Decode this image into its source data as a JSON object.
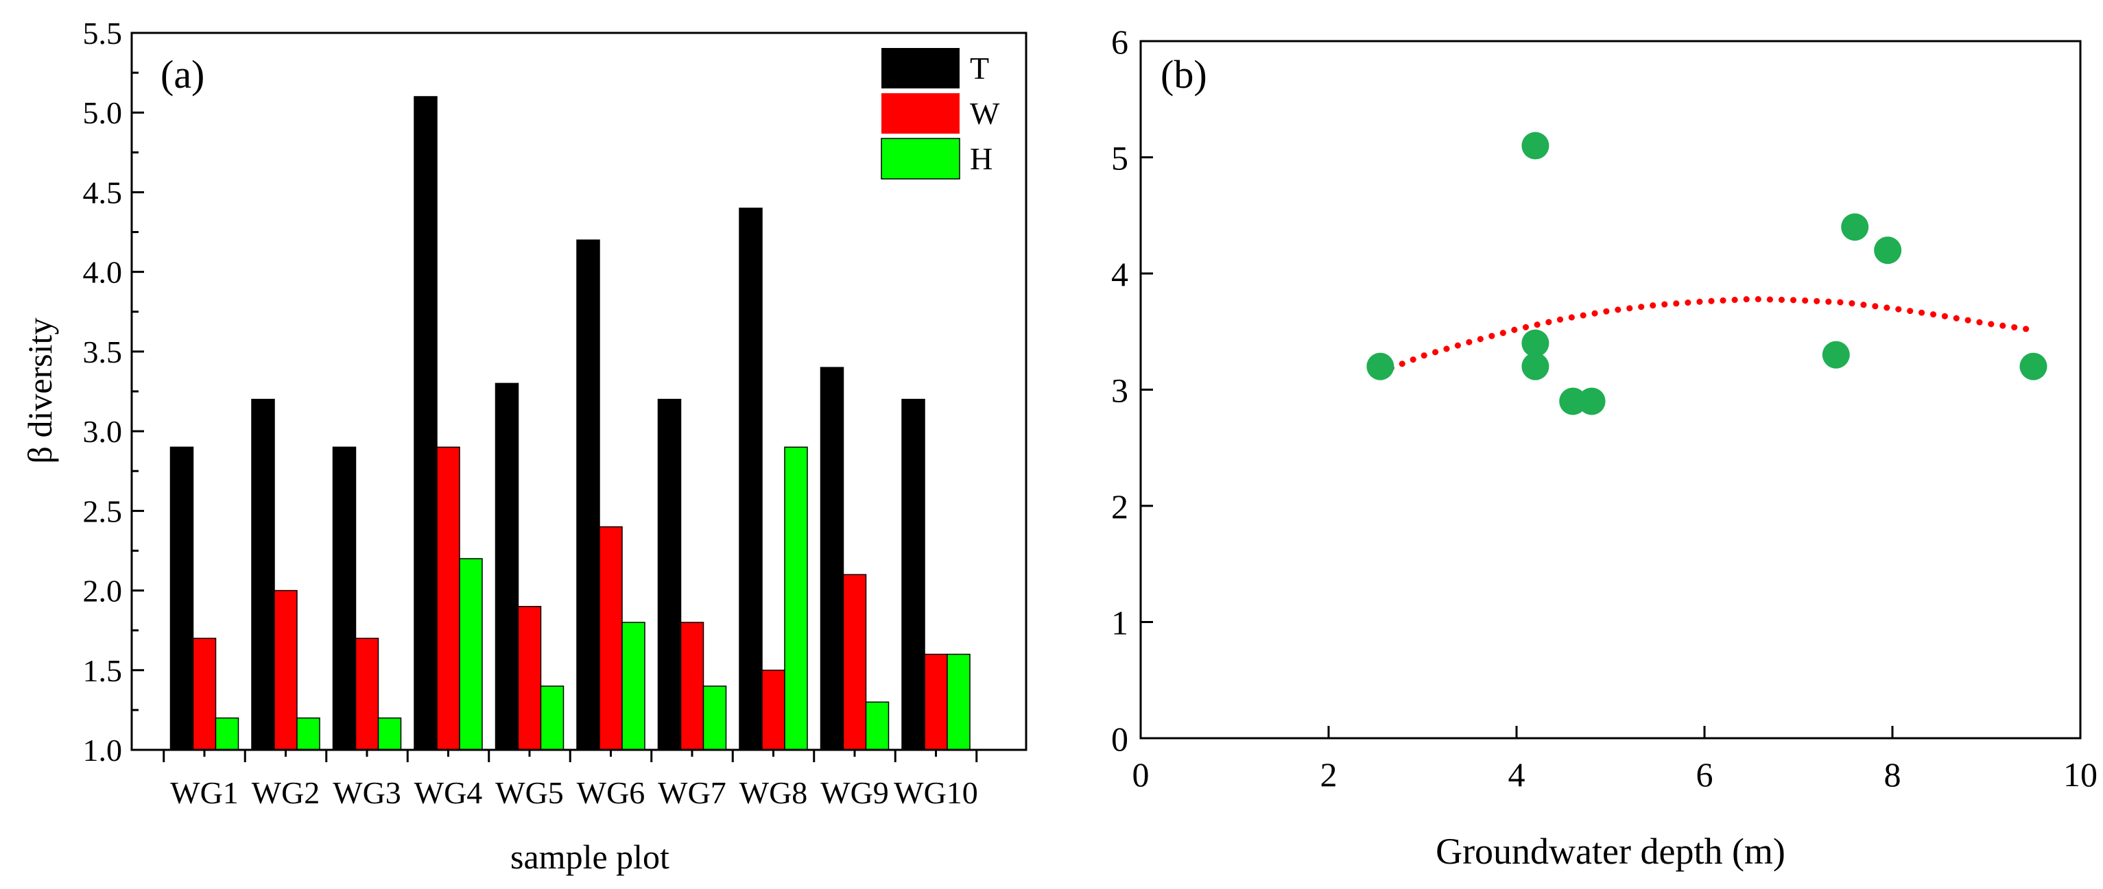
{
  "colors": {
    "T": "#000000",
    "W": "#ff0000",
    "H": "#00ff00",
    "scatter_points": "#1fae52",
    "trend_line": "#ff0000"
  },
  "chart_data": [
    {
      "type": "bar",
      "panel_label": "(a)",
      "title": "",
      "xlabel": "sample plot",
      "ylabel": "β diversity",
      "categories": [
        "WG1",
        "WG2",
        "WG3",
        "WG4",
        "WG5",
        "WG6",
        "WG7",
        "WG8",
        "WG9",
        "WG10"
      ],
      "series": [
        {
          "name": "T",
          "values": [
            2.9,
            3.2,
            2.9,
            5.1,
            3.3,
            4.2,
            3.2,
            4.4,
            3.4,
            3.2
          ]
        },
        {
          "name": "W",
          "values": [
            1.7,
            2.0,
            1.7,
            2.9,
            1.9,
            2.4,
            1.8,
            1.5,
            2.1,
            1.6
          ]
        },
        {
          "name": "H",
          "values": [
            1.2,
            1.2,
            1.2,
            2.2,
            1.4,
            1.8,
            1.4,
            2.9,
            1.3,
            1.6
          ]
        }
      ],
      "ylim": [
        1.0,
        5.5
      ],
      "yticks": [
        "1.0",
        "1.5",
        "2.0",
        "2.5",
        "3.0",
        "3.5",
        "4.0",
        "4.5",
        "5.0",
        "5.5"
      ],
      "legend": [
        "T",
        "W",
        "H"
      ],
      "legend_position": "top-right",
      "grid": false
    },
    {
      "type": "scatter",
      "panel_label": "(b)",
      "title": "",
      "xlabel": "Groundwater depth (m)",
      "ylabel": "",
      "points": [
        {
          "x": 2.55,
          "y": 3.2
        },
        {
          "x": 4.2,
          "y": 5.1
        },
        {
          "x": 4.2,
          "y": 3.4
        },
        {
          "x": 4.2,
          "y": 3.2
        },
        {
          "x": 4.6,
          "y": 2.9
        },
        {
          "x": 4.8,
          "y": 2.9
        },
        {
          "x": 7.4,
          "y": 3.3
        },
        {
          "x": 7.6,
          "y": 4.4
        },
        {
          "x": 7.95,
          "y": 4.2
        },
        {
          "x": 9.5,
          "y": 3.2
        }
      ],
      "trend_line": {
        "style": "dotted",
        "x": [
          2.55,
          3.0,
          3.5,
          4.0,
          4.5,
          5.0,
          5.5,
          6.0,
          6.5,
          7.0,
          7.5,
          8.0,
          8.5,
          9.0,
          9.45
        ],
        "y": [
          3.15,
          3.29,
          3.41,
          3.52,
          3.61,
          3.68,
          3.73,
          3.76,
          3.78,
          3.77,
          3.75,
          3.7,
          3.64,
          3.57,
          3.52
        ]
      },
      "xlim": [
        0,
        10
      ],
      "ylim": [
        0,
        6
      ],
      "xticks": [
        "0",
        "2",
        "4",
        "6",
        "8",
        "10"
      ],
      "yticks": [
        "0",
        "1",
        "2",
        "3",
        "4",
        "5",
        "6"
      ],
      "grid": false
    }
  ]
}
